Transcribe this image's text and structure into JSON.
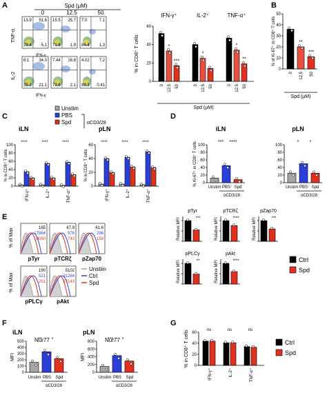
{
  "panels": {
    "A": {
      "label": "A",
      "flow_title": "Spd (μM)",
      "doses": [
        "0",
        "12.5",
        "50"
      ],
      "rows": [
        {
          "y_marker": "TNF-α",
          "x_marker": "IFN-γ",
          "quadrants": [
            [
              "13.9",
              "51.6",
              "29.4",
              "5.1"
            ],
            [
              "15.5",
              "25.7",
              "71.6",
              "1.9"
            ],
            [
              "7.0",
              "7.1",
              "84.4",
              "1.3"
            ]
          ]
        },
        {
          "y_marker": "IL-2",
          "x_marker": "IFN-γ",
          "quadrants": [
            [
              "8.1",
              "34.0",
              "35.2",
              "21.1"
            ],
            [
              "7.44",
              "16.8",
              "73.6",
              "2.1"
            ],
            [
              "4.02",
              "7.2",
              "88.3",
              "0.41"
            ]
          ]
        }
      ]
    },
    "B": {
      "label": "B"
    },
    "C": {
      "label": "C",
      "legend": [
        "Unstim",
        "PBS",
        "Spd"
      ],
      "stim_label": "αCD3/28",
      "subtitles": [
        "iLN",
        "pLN"
      ]
    },
    "D": {
      "label": "D",
      "subtitles": [
        "iLN",
        "pLN"
      ],
      "groups": [
        "Unstim",
        "PBS",
        "Spd"
      ],
      "stim_label": "αCD3/28"
    },
    "E": {
      "label": "E",
      "histograms": [
        {
          "marker": "pTyr",
          "values": [
            "165",
            "17864",
            "8060"
          ]
        },
        {
          "marker": "pTCRζ",
          "values": [
            "67.9",
            "976",
            "743"
          ]
        },
        {
          "marker": "pZap70",
          "values": [
            "61.6",
            "296",
            "159"
          ]
        },
        {
          "marker": "pPLCγ",
          "values": [
            "190",
            "521",
            "251"
          ]
        },
        {
          "marker": "pAkt",
          "values": [
            "5102",
            "31264",
            "17143"
          ]
        }
      ],
      "ylabel": "% of Max",
      "legend": [
        "Unstim",
        "Ctrl",
        "Spd"
      ],
      "bar_legend": [
        "Ctrl",
        "Spd"
      ]
    },
    "F": {
      "label": "F",
      "subtitles": [
        "iLN",
        "pLN"
      ],
      "marker": "Nur77",
      "ylabel": "MFI",
      "groups": [
        "Unstim",
        "PBS",
        "Spd"
      ],
      "stim_label": "αCD3/28"
    },
    "G": {
      "label": "G",
      "legend": [
        "Ctrl",
        "Spd"
      ]
    }
  },
  "colors": {
    "ctrl": "#000000",
    "spd": "#e0301e",
    "unstim": "#a6a6a6",
    "pbs": "#2a3fd9",
    "spd_c": "#e0301e"
  },
  "chart_data": [
    {
      "type": "bar",
      "id": "A-bars",
      "ylabel": "% in CD8⁺ T cells",
      "xlabel": "Spd (μM)",
      "ylim": [
        0,
        60
      ],
      "yticks": [
        0,
        20,
        40,
        60
      ],
      "groups": [
        {
          "name": "IFN-γ⁺",
          "categories": [
            "0",
            "12.5",
            "50"
          ],
          "values": [
            52,
            33,
            17
          ],
          "sig": [
            "",
            "*",
            "***"
          ]
        },
        {
          "name": "IL-2⁺",
          "categories": [
            "0",
            "12.5",
            "50"
          ],
          "values": [
            40,
            25,
            14
          ],
          "sig": [
            "",
            "*",
            ""
          ]
        },
        {
          "name": "TNF-α⁺",
          "categories": [
            "0",
            "12.5",
            "50"
          ],
          "values": [
            47,
            34,
            19
          ],
          "sig": [
            "",
            "*",
            "**"
          ]
        }
      ]
    },
    {
      "type": "bar",
      "id": "B",
      "ylabel": "% of Ki-67⁺ in CD8⁺ T cells",
      "xlabel": "Spd (μM)",
      "ylim": [
        0,
        50
      ],
      "yticks": [
        0,
        10,
        20,
        30,
        40,
        50
      ],
      "categories": [
        "0",
        "12.5",
        "50"
      ],
      "values": [
        36,
        20,
        11
      ],
      "sig": [
        "",
        "**",
        "***"
      ]
    },
    {
      "type": "bar",
      "id": "C-iLN",
      "title": "iLN",
      "ylabel": "% in CD8⁺ T cells",
      "ylim": [
        0,
        100
      ],
      "yticks": [
        0,
        20,
        40,
        60,
        80,
        100
      ],
      "categories": [
        "IFN-γ⁺",
        "IL-2⁺",
        "TNF-α⁺"
      ],
      "series": [
        {
          "name": "Unstim",
          "values": [
            3,
            3,
            2
          ]
        },
        {
          "name": "PBS",
          "values": [
            35,
            55,
            58
          ]
        },
        {
          "name": "Spd",
          "values": [
            20,
            20,
            28
          ]
        }
      ]
    },
    {
      "type": "bar",
      "id": "C-pLN",
      "title": "pLN",
      "ylabel": "% in CD8⁺ T cells",
      "ylim": [
        0,
        60
      ],
      "yticks": [
        0,
        20,
        40,
        60
      ],
      "categories": [
        "IFN-γ⁺",
        "IL-2⁺",
        "TNF-α⁺"
      ],
      "series": [
        {
          "name": "Unstim",
          "values": [
            3,
            3,
            2
          ]
        },
        {
          "name": "PBS",
          "values": [
            40,
            42,
            50
          ]
        },
        {
          "name": "Spd",
          "values": [
            20,
            28,
            27
          ]
        }
      ]
    },
    {
      "type": "bar",
      "id": "D-iLN",
      "title": "iLN",
      "ylabel": "% Ki-67⁺ in CD8⁺ T cells",
      "ylim": [
        0,
        100
      ],
      "yticks": [
        0,
        20,
        40,
        60,
        80,
        100
      ],
      "categories": [
        "Unstim",
        "PBS",
        "Spd"
      ],
      "values": [
        12,
        45,
        8
      ]
    },
    {
      "type": "bar",
      "id": "D-pLN",
      "title": "pLN",
      "ylim": [
        0,
        100
      ],
      "yticks": [
        0,
        20,
        40,
        60,
        80,
        100
      ],
      "categories": [
        "Unstim",
        "PBS",
        "Spd"
      ],
      "values": [
        25,
        50,
        25
      ]
    },
    {
      "type": "bar",
      "id": "E-bars",
      "ylabel": "Relative MFI",
      "panels": [
        {
          "name": "pTyr",
          "values": [
            1.0,
            0.55
          ],
          "sig": "***"
        },
        {
          "name": "pTCRζ",
          "values": [
            1.0,
            0.76
          ],
          "sig": "****"
        },
        {
          "name": "pZap70",
          "values": [
            1.0,
            0.6
          ],
          "sig": "***"
        },
        {
          "name": "pPLCγ",
          "values": [
            1.0,
            0.48
          ],
          "sig": "**"
        },
        {
          "name": "pAkt",
          "values": [
            1.0,
            0.6
          ],
          "sig": "****"
        }
      ]
    },
    {
      "type": "bar",
      "id": "F-iLN",
      "title": "iLN",
      "subtitle": "Nur77",
      "ylabel": "MFI",
      "ylim": [
        0,
        500
      ],
      "yticks": [
        0,
        100,
        200,
        300,
        400,
        500
      ],
      "categories": [
        "Unstim",
        "PBS",
        "Spd"
      ],
      "values": [
        160,
        330,
        220
      ]
    },
    {
      "type": "bar",
      "id": "F-pLN",
      "title": "pLN",
      "subtitle": "Nur77",
      "ylabel": "MFI",
      "ylim": [
        0,
        800
      ],
      "yticks": [
        0,
        200,
        400,
        600,
        800
      ],
      "categories": [
        "Unstim",
        "PBS",
        "Spd"
      ],
      "values": [
        150,
        430,
        290
      ]
    },
    {
      "type": "bar",
      "id": "G",
      "ylabel": "% in CD8⁺ T cells",
      "ylim": [
        0,
        60
      ],
      "yticks": [
        0,
        20,
        40,
        60
      ],
      "categories": [
        "IFN-γ⁺",
        "IL-2⁺",
        "TNF-α⁺"
      ],
      "series": [
        {
          "name": "Ctrl",
          "values": [
            44,
            41,
            34
          ]
        },
        {
          "name": "Spd",
          "values": [
            44,
            41,
            33
          ]
        }
      ],
      "sig": [
        "ns",
        "ns",
        "ns"
      ]
    }
  ]
}
